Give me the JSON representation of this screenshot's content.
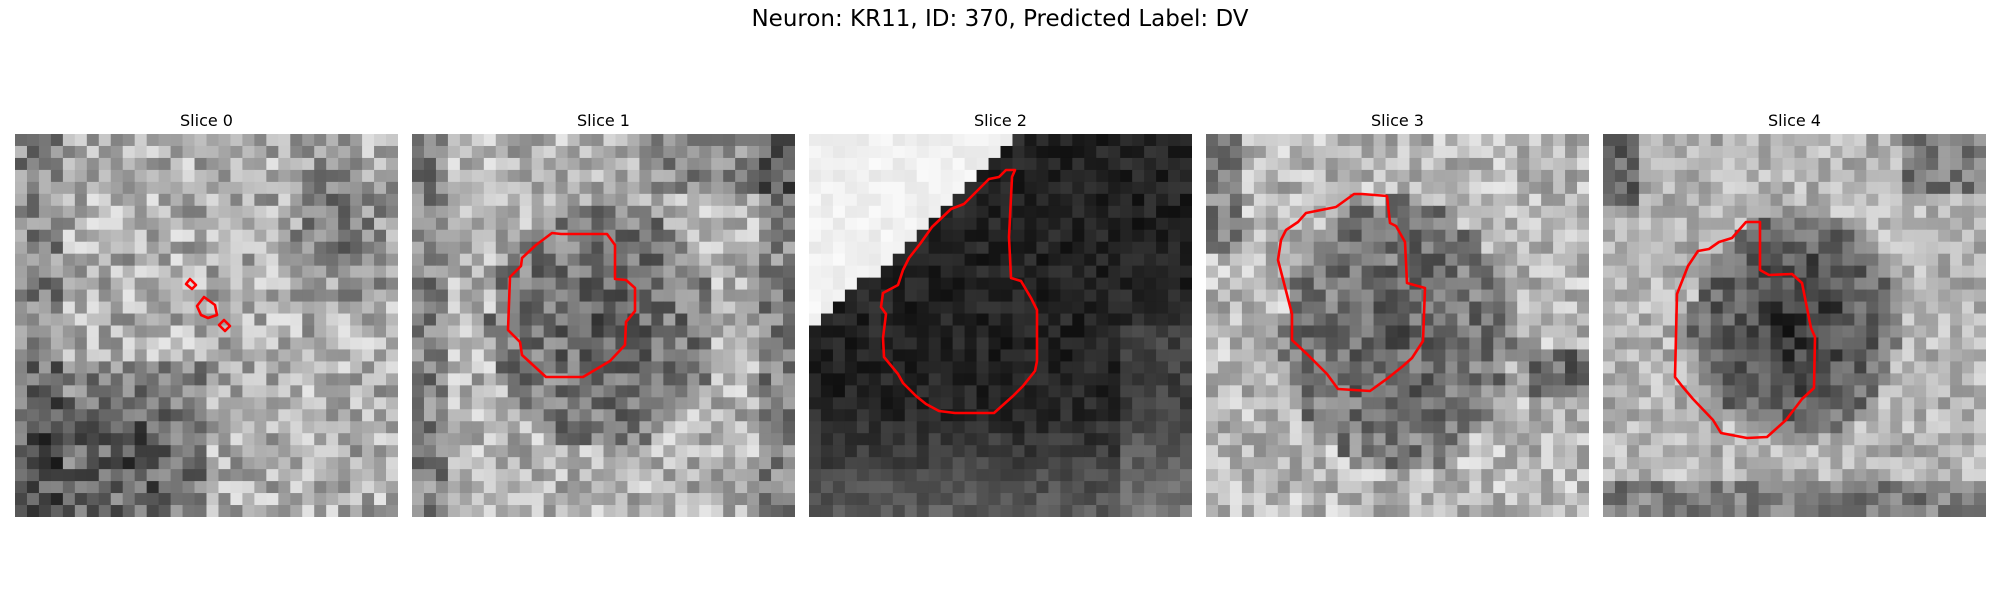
{
  "figure": {
    "title": "Neuron: KR11, ID: 370, Predicted Label: DV"
  },
  "panels": [
    {
      "title": "Slice 0"
    },
    {
      "title": "Slice 1"
    },
    {
      "title": "Slice 2"
    },
    {
      "title": "Slice 3"
    },
    {
      "title": "Slice 4"
    }
  ],
  "colors": {
    "contour": "#ff0000",
    "background": "#ffffff"
  }
}
